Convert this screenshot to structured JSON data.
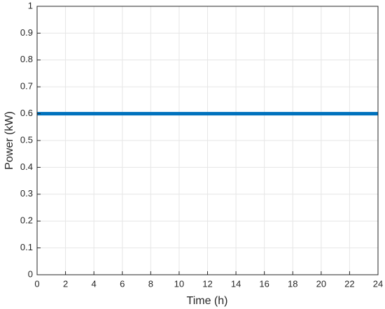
{
  "chart_data": {
    "type": "line",
    "x_label": "Time (h)",
    "y_label": "Power (kW)",
    "x": [
      0,
      24
    ],
    "series": [
      {
        "color": "#0072bd",
        "values": [
          0.6,
          0.6
        ]
      }
    ],
    "xlim": [
      0,
      24
    ],
    "xticks": [
      0,
      2,
      4,
      6,
      8,
      10,
      12,
      14,
      16,
      18,
      20,
      22,
      24
    ],
    "ylim": [
      0,
      1
    ],
    "yticks": [
      0,
      0.1,
      0.2,
      0.3,
      0.4,
      0.5,
      0.6,
      0.7,
      0.8,
      0.9,
      1
    ],
    "grid": true
  }
}
